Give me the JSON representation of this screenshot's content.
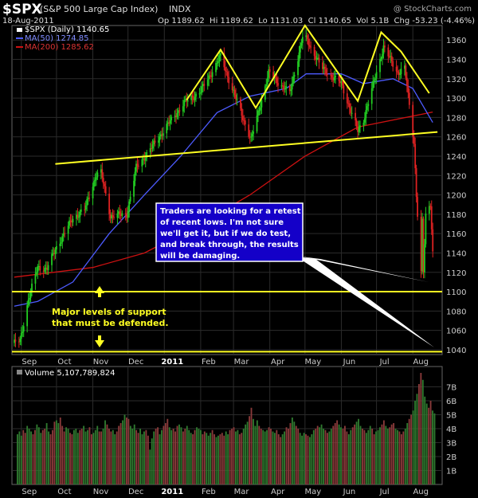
{
  "header": {
    "symbol": "$SPX",
    "name": "(S&P 500 Large Cap Index)",
    "exchange": "INDX",
    "watermark": "@ StockCharts.com",
    "date": "18-Aug-2011",
    "ohlc": "Op 1189.62  Hi 1189.62  Lo 1131.03  Cl 1140.65  Vol 5.1B  Chg -53.23 (-4.46%)",
    "chg_dir": "down"
  },
  "legend": {
    "price": "$SPX (Daily) 1140.65",
    "ma50": "MA(50) 1274.85",
    "ma200": "MA(200) 1285.62"
  },
  "annotations": {
    "callout": [
      "Traders are looking for a retest",
      "of recent lows. I'm not sure",
      "we'll get it, but if we do test,",
      "and break through, the results",
      "will be damaging."
    ],
    "support": [
      "Major levels of support",
      "that must be defended."
    ]
  },
  "colors": {
    "bg": "#000000",
    "grid": "#2b2b2b",
    "axis_text": "#cccccc",
    "up": "#22cc22",
    "down": "#dd2222",
    "ma50": "#4d5bff",
    "ma200": "#cc1111",
    "annotation": "#ffff22",
    "callout_bg": "#1400c8",
    "vol_up": "#2f7a2f",
    "vol_down": "#8a3a3a"
  },
  "chart_data": [
    {
      "type": "candlestick",
      "title": "$SPX (Daily)",
      "ylim": [
        1035,
        1375
      ],
      "y_ticks": [
        1040,
        1060,
        1080,
        1100,
        1120,
        1140,
        1160,
        1180,
        1200,
        1220,
        1240,
        1260,
        1280,
        1300,
        1320,
        1340,
        1360
      ],
      "x_labels": [
        "Sep",
        "Oct",
        "Nov",
        "Dec",
        "2011",
        "Feb",
        "Mar",
        "Apr",
        "May",
        "Jun",
        "Jul",
        "Aug"
      ],
      "price_path": [
        [
          "2010-08-26",
          1047
        ],
        [
          "2010-08-31",
          1049
        ],
        [
          "2010-09-07",
          1092
        ],
        [
          "2010-09-15",
          1125
        ],
        [
          "2010-09-23",
          1124
        ],
        [
          "2010-10-01",
          1146
        ],
        [
          "2010-10-15",
          1176
        ],
        [
          "2010-10-25",
          1185
        ],
        [
          "2010-11-04",
          1221
        ],
        [
          "2010-11-08",
          1223
        ],
        [
          "2010-11-16",
          1178
        ],
        [
          "2010-11-30",
          1180
        ],
        [
          "2010-12-08",
          1228
        ],
        [
          "2010-12-20",
          1247
        ],
        [
          "2011-01-03",
          1271
        ],
        [
          "2011-01-18",
          1295
        ],
        [
          "2011-02-01",
          1307
        ],
        [
          "2011-02-18",
          1343
        ],
        [
          "2011-03-01",
          1306
        ],
        [
          "2011-03-16",
          1257
        ],
        [
          "2011-03-31",
          1326
        ],
        [
          "2011-04-18",
          1305
        ],
        [
          "2011-04-29",
          1363
        ],
        [
          "2011-05-02",
          1361
        ],
        [
          "2011-05-16",
          1330
        ],
        [
          "2011-06-01",
          1315
        ],
        [
          "2011-06-15",
          1266
        ],
        [
          "2011-06-20",
          1278
        ],
        [
          "2011-07-07",
          1353
        ],
        [
          "2011-07-19",
          1326
        ],
        [
          "2011-07-25",
          1331
        ],
        [
          "2011-08-02",
          1254
        ],
        [
          "2011-08-04",
          1200
        ],
        [
          "2011-08-08",
          1119
        ],
        [
          "2011-08-09",
          1172
        ],
        [
          "2011-08-10",
          1120
        ],
        [
          "2011-08-12",
          1178
        ],
        [
          "2011-08-16",
          1192
        ],
        [
          "2011-08-18",
          1140.65
        ]
      ],
      "ma50_path": [
        [
          "2010-08-26",
          1085
        ],
        [
          "2010-09-15",
          1090
        ],
        [
          "2010-10-15",
          1110
        ],
        [
          "2010-11-15",
          1160
        ],
        [
          "2010-12-15",
          1200
        ],
        [
          "2011-01-15",
          1240
        ],
        [
          "2011-02-15",
          1285
        ],
        [
          "2011-03-15",
          1302
        ],
        [
          "2011-04-15",
          1310
        ],
        [
          "2011-05-02",
          1325
        ],
        [
          "2011-06-01",
          1325
        ],
        [
          "2011-06-20",
          1315
        ],
        [
          "2011-07-15",
          1320
        ],
        [
          "2011-08-01",
          1310
        ],
        [
          "2011-08-18",
          1274.85
        ]
      ],
      "ma200_path": [
        [
          "2010-08-26",
          1115
        ],
        [
          "2010-11-01",
          1125
        ],
        [
          "2010-12-15",
          1140
        ],
        [
          "2011-02-01",
          1170
        ],
        [
          "2011-03-15",
          1200
        ],
        [
          "2011-05-01",
          1240
        ],
        [
          "2011-06-15",
          1270
        ],
        [
          "2011-08-18",
          1285.62
        ]
      ],
      "lines": {
        "neckline": [
          [
            "2010-09-30",
            1232
          ],
          [
            "2011-08-22",
            1265
          ]
        ],
        "pattern": [
          [
            "2011-01-20",
            1298
          ],
          [
            "2011-02-18",
            1350
          ],
          [
            "2011-03-20",
            1290
          ],
          [
            "2011-05-01",
            1375
          ],
          [
            "2011-06-15",
            1297
          ],
          [
            "2011-07-05",
            1368
          ],
          [
            "2011-07-22",
            1348
          ],
          [
            "2011-08-15",
            1305
          ]
        ],
        "support_upper": 1100,
        "support_lower": 1038
      }
    },
    {
      "type": "bar",
      "title": "Volume 5,107,789,824",
      "ylim": [
        0,
        8
      ],
      "y_ticks": [
        1,
        2,
        3,
        4,
        5,
        6,
        7
      ],
      "y_tick_labels": [
        "1B",
        "2B",
        "3B",
        "4B",
        "5B",
        "6B",
        "7B"
      ],
      "values": [
        3.6,
        3.8,
        3.5,
        3.9,
        3.7,
        4.2,
        4.0,
        3.8,
        3.6,
        3.9,
        4.3,
        4.1,
        3.7,
        3.9,
        4.0,
        4.4,
        3.8,
        3.6,
        3.9,
        4.5,
        4.6,
        4.4,
        4.8,
        4.2,
        3.8,
        4.1,
        4.0,
        3.7,
        3.6,
        3.9,
        4.0,
        3.7,
        3.9,
        4.0,
        4.2,
        3.8,
        3.9,
        4.1,
        3.6,
        3.7,
        3.9,
        4.2,
        3.8,
        3.8,
        4.0,
        4.6,
        4.3,
        4.0,
        3.8,
        3.9,
        3.6,
        3.8,
        4.2,
        4.4,
        4.6,
        5.0,
        4.8,
        4.7,
        4.2,
        4.0,
        4.3,
        3.9,
        3.7,
        4.0,
        3.6,
        3.8,
        3.9,
        3.5,
        2.5,
        3.3,
        3.8,
        4.0,
        4.1,
        3.6,
        3.9,
        4.2,
        4.4,
        4.7,
        4.1,
        3.9,
        4.0,
        3.8,
        4.2,
        4.3,
        4.1,
        3.8,
        4.0,
        4.2,
        3.9,
        3.7,
        3.6,
        3.9,
        4.1,
        4.0,
        3.9,
        3.6,
        3.8,
        3.7,
        3.5,
        3.7,
        3.9,
        3.6,
        3.4,
        3.5,
        3.6,
        3.7,
        3.5,
        3.8,
        3.6,
        3.9,
        4.0,
        4.1,
        3.8,
        3.9,
        3.6,
        3.7,
        4.0,
        4.3,
        4.5,
        4.9,
        5.5,
        4.7,
        4.2,
        4.6,
        4.2,
        4.0,
        3.9,
        3.8,
        3.9,
        4.1,
        4.0,
        3.8,
        3.7,
        3.9,
        3.6,
        3.4,
        3.6,
        3.8,
        4.1,
        4.0,
        4.4,
        4.8,
        4.5,
        4.2,
        4.0,
        3.7,
        3.5,
        3.7,
        3.6,
        3.5,
        3.4,
        3.6,
        3.9,
        4.0,
        4.2,
        4.1,
        4.3,
        4.0,
        3.9,
        3.7,
        3.8,
        4.0,
        4.2,
        4.4,
        4.6,
        4.3,
        4.1,
        4.0,
        4.2,
        3.8,
        3.6,
        3.9,
        4.1,
        4.3,
        4.5,
        4.7,
        4.2,
        4.0,
        3.9,
        3.7,
        3.9,
        4.2,
        4.0,
        3.6,
        3.8,
        3.9,
        4.1,
        4.3,
        4.6,
        4.2,
        4.0,
        4.1,
        4.3,
        4.4,
        4.0,
        3.9,
        3.8,
        3.6,
        3.8,
        4.0,
        4.4,
        4.7,
        5.0,
        5.3,
        6.0,
        6.5,
        7.2,
        8.0,
        7.5,
        6.3,
        5.8,
        5.5,
        6.0,
        5.3,
        5.1
      ]
    }
  ]
}
